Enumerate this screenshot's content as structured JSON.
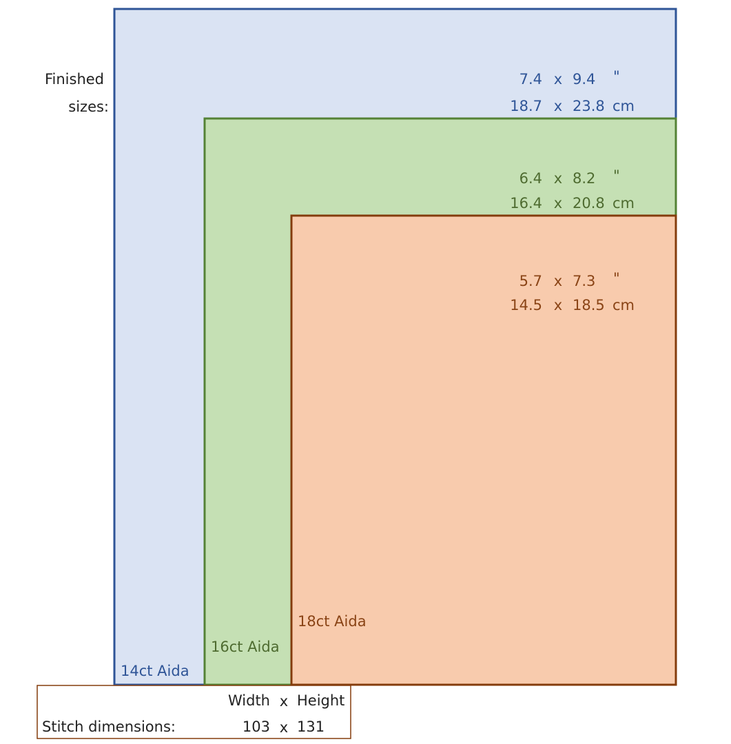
{
  "finished_sizes_label": [
    "Finished",
    "sizes:"
  ],
  "separator": "x",
  "fabrics": [
    {
      "name": "14ct Aida",
      "width_in": "7.4",
      "height_in": "9.4",
      "in_unit": "\"",
      "width_cm": "18.7",
      "height_cm": "23.8",
      "cm_unit": "cm"
    },
    {
      "name": "16ct Aida",
      "width_in": "6.4",
      "height_in": "8.2",
      "in_unit": "\"",
      "width_cm": "16.4",
      "height_cm": "20.8",
      "cm_unit": "cm"
    },
    {
      "name": "18ct Aida",
      "width_in": "5.7",
      "height_in": "7.3",
      "in_unit": "\"",
      "width_cm": "14.5",
      "height_cm": "18.5",
      "cm_unit": "cm"
    }
  ],
  "stitch": {
    "label": "Stitch dimensions:",
    "width_header": "Width",
    "height_header": "Height",
    "width": "103",
    "height": "131"
  }
}
